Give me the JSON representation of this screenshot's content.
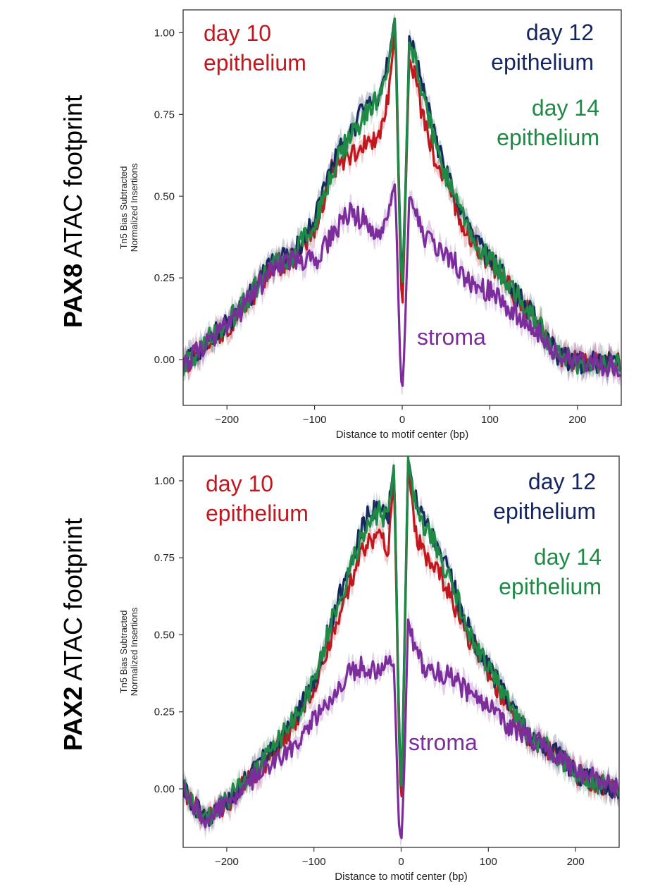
{
  "colors": {
    "day10": "#c0181e",
    "day12": "#14245e",
    "day14": "#1e8a46",
    "stroma": "#7b2d9c",
    "axis": "#333333"
  },
  "chart_data": [
    {
      "type": "line",
      "panel_title": {
        "bold": "PAX8",
        "rest": " ATAC footprint"
      },
      "xlabel": "Distance to motif center (bp)",
      "ylabel": [
        "Tn5 Bias Subtracted",
        "Normalized Insertions"
      ],
      "xlim": [
        -250,
        250
      ],
      "ylim": [
        -0.14,
        1.07
      ],
      "xticks": [
        -200,
        -100,
        0,
        100,
        200
      ],
      "xtick_labels": [
        "−200",
        "−100",
        "0",
        "100",
        "200"
      ],
      "yticks": [
        0.0,
        0.25,
        0.5,
        0.75,
        1.0
      ],
      "ytick_labels": [
        "0.00",
        "0.25",
        "0.50",
        "0.75",
        "1.00"
      ],
      "annotations": {
        "day10": [
          "day 10",
          "epithelium"
        ],
        "day12": [
          "day 12",
          "epithelium"
        ],
        "day14": [
          "day 14",
          "epithelium"
        ],
        "stroma": [
          "stroma"
        ]
      },
      "series": [
        {
          "name": "day 10 epithelium",
          "color_key": "day10",
          "x": [
            -250,
            -225,
            -200,
            -175,
            -150,
            -125,
            -100,
            -80,
            -60,
            -40,
            -25,
            -15,
            -8,
            -3,
            0,
            3,
            8,
            15,
            25,
            40,
            60,
            80,
            100,
            125,
            150,
            175,
            200,
            225,
            250
          ],
          "y": [
            -0.02,
            0.05,
            0.1,
            0.18,
            0.28,
            0.31,
            0.4,
            0.58,
            0.63,
            0.66,
            0.7,
            0.83,
            1.02,
            0.4,
            0.12,
            0.42,
            0.92,
            0.86,
            0.72,
            0.6,
            0.47,
            0.36,
            0.3,
            0.21,
            0.13,
            0.02,
            -0.01,
            -0.01,
            0.0
          ]
        },
        {
          "name": "day 12 epithelium",
          "color_key": "day12",
          "x": [
            -250,
            -225,
            -200,
            -175,
            -150,
            -125,
            -100,
            -80,
            -60,
            -40,
            -25,
            -15,
            -8,
            -3,
            0,
            3,
            8,
            15,
            25,
            40,
            60,
            80,
            100,
            125,
            150,
            175,
            200,
            225,
            250
          ],
          "y": [
            -0.02,
            0.05,
            0.11,
            0.19,
            0.29,
            0.32,
            0.42,
            0.6,
            0.69,
            0.78,
            0.82,
            0.92,
            1.06,
            0.45,
            0.22,
            0.45,
            0.98,
            0.93,
            0.82,
            0.65,
            0.5,
            0.38,
            0.31,
            0.22,
            0.13,
            0.02,
            -0.01,
            -0.01,
            0.0
          ]
        },
        {
          "name": "day 14 epithelium",
          "color_key": "day14",
          "x": [
            -250,
            -225,
            -200,
            -175,
            -150,
            -125,
            -100,
            -80,
            -60,
            -40,
            -25,
            -15,
            -8,
            -3,
            0,
            3,
            8,
            15,
            25,
            40,
            60,
            80,
            100,
            125,
            150,
            175,
            200,
            225,
            250
          ],
          "y": [
            -0.02,
            0.05,
            0.11,
            0.19,
            0.29,
            0.32,
            0.41,
            0.58,
            0.68,
            0.76,
            0.8,
            0.9,
            1.05,
            0.43,
            0.2,
            0.44,
            0.97,
            0.92,
            0.8,
            0.64,
            0.49,
            0.37,
            0.31,
            0.22,
            0.13,
            0.02,
            -0.01,
            -0.01,
            0.0
          ]
        },
        {
          "name": "stroma",
          "color_key": "stroma",
          "x": [
            -250,
            -225,
            -200,
            -175,
            -150,
            -125,
            -100,
            -80,
            -60,
            -40,
            -25,
            -15,
            -8,
            -3,
            0,
            3,
            8,
            15,
            25,
            40,
            60,
            80,
            100,
            125,
            150,
            175,
            200,
            225,
            250
          ],
          "y": [
            -0.02,
            0.05,
            0.1,
            0.18,
            0.27,
            0.3,
            0.3,
            0.38,
            0.45,
            0.42,
            0.36,
            0.47,
            0.55,
            0.05,
            -0.12,
            0.08,
            0.5,
            0.45,
            0.38,
            0.34,
            0.3,
            0.22,
            0.21,
            0.15,
            0.1,
            0.02,
            -0.01,
            -0.01,
            -0.03
          ]
        }
      ]
    },
    {
      "type": "line",
      "panel_title": {
        "bold": "PAX2",
        "rest": " ATAC footprint"
      },
      "xlabel": "Distance to motif center (bp)",
      "ylabel": [
        "Tn5 Bias Subtracted",
        "Normalized Insertions"
      ],
      "xlim": [
        -250,
        250
      ],
      "ylim": [
        -0.19,
        1.08
      ],
      "xticks": [
        -200,
        -100,
        0,
        100,
        200
      ],
      "xtick_labels": [
        "−200",
        "−100",
        "0",
        "100",
        "200"
      ],
      "yticks": [
        0.0,
        0.25,
        0.5,
        0.75,
        1.0
      ],
      "ytick_labels": [
        "0.00",
        "0.25",
        "0.50",
        "0.75",
        "1.00"
      ],
      "annotations": {
        "day10": [
          "day 10",
          "epithelium"
        ],
        "day12": [
          "day 12",
          "epithelium"
        ],
        "day14": [
          "day 14",
          "epithelium"
        ],
        "stroma": [
          "stroma"
        ]
      },
      "series": [
        {
          "name": "day 10 epithelium",
          "color_key": "day10",
          "x": [
            -250,
            -225,
            -200,
            -175,
            -150,
            -125,
            -100,
            -80,
            -60,
            -40,
            -25,
            -15,
            -8,
            -3,
            0,
            3,
            8,
            15,
            25,
            40,
            60,
            80,
            100,
            125,
            150,
            175,
            200,
            225,
            250
          ],
          "y": [
            0.0,
            -0.1,
            -0.05,
            0.03,
            0.1,
            0.2,
            0.32,
            0.5,
            0.66,
            0.8,
            0.82,
            0.78,
            1.02,
            0.25,
            -0.1,
            0.3,
            1.05,
            0.85,
            0.77,
            0.73,
            0.6,
            0.48,
            0.38,
            0.25,
            0.15,
            0.12,
            0.05,
            0.02,
            0.0
          ]
        },
        {
          "name": "day 12 epithelium",
          "color_key": "day12",
          "x": [
            -250,
            -225,
            -200,
            -175,
            -150,
            -125,
            -100,
            -80,
            -60,
            -40,
            -25,
            -15,
            -8,
            -3,
            0,
            3,
            8,
            15,
            25,
            40,
            60,
            80,
            100,
            125,
            150,
            175,
            200,
            225,
            250
          ],
          "y": [
            0.0,
            -0.1,
            -0.04,
            0.04,
            0.12,
            0.22,
            0.35,
            0.55,
            0.72,
            0.88,
            0.92,
            0.88,
            1.06,
            0.3,
            -0.05,
            0.35,
            1.07,
            0.95,
            0.88,
            0.8,
            0.66,
            0.5,
            0.4,
            0.27,
            0.16,
            0.12,
            0.05,
            0.02,
            0.0
          ]
        },
        {
          "name": "day 14 epithelium",
          "color_key": "day14",
          "x": [
            -250,
            -225,
            -200,
            -175,
            -150,
            -125,
            -100,
            -80,
            -60,
            -40,
            -25,
            -15,
            -8,
            -3,
            0,
            3,
            8,
            15,
            25,
            40,
            60,
            80,
            100,
            125,
            150,
            175,
            200,
            225,
            250
          ],
          "y": [
            0.0,
            -0.1,
            -0.04,
            0.04,
            0.12,
            0.22,
            0.35,
            0.54,
            0.7,
            0.86,
            0.9,
            0.87,
            1.06,
            0.28,
            -0.06,
            0.33,
            1.07,
            0.94,
            0.86,
            0.79,
            0.65,
            0.5,
            0.4,
            0.27,
            0.16,
            0.12,
            0.05,
            0.02,
            0.0
          ]
        },
        {
          "name": "stroma",
          "color_key": "stroma",
          "x": [
            -250,
            -225,
            -200,
            -175,
            -150,
            -125,
            -100,
            -80,
            -60,
            -40,
            -25,
            -15,
            -8,
            -3,
            0,
            3,
            8,
            15,
            25,
            40,
            60,
            80,
            100,
            125,
            150,
            175,
            200,
            225,
            250
          ],
          "y": [
            0.0,
            -0.1,
            -0.05,
            0.02,
            0.08,
            0.14,
            0.22,
            0.3,
            0.38,
            0.4,
            0.38,
            0.42,
            0.4,
            -0.1,
            -0.18,
            0.0,
            0.55,
            0.45,
            0.4,
            0.38,
            0.36,
            0.3,
            0.28,
            0.2,
            0.16,
            0.12,
            0.06,
            0.03,
            0.0
          ]
        }
      ]
    }
  ]
}
